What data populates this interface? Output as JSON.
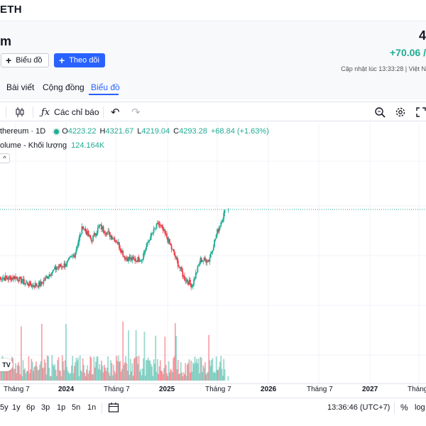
{
  "topbar": {
    "symbol": "ETH"
  },
  "header": {
    "name_partial": "m",
    "price_partial": "4",
    "change": "+70.06 /",
    "updated": "Cập nhật lúc   13:33:28 | Việt N",
    "buttons": {
      "chart": "Biểu đồ",
      "follow": "Theo dõi"
    },
    "tabs": [
      "Bài viết",
      "Cộng đồng",
      "Biểu đồ"
    ],
    "active_tab": "Biểu đồ"
  },
  "toolbar": {
    "indicators_label": "Các chỉ báo"
  },
  "legend": {
    "symbol": "thereum · 1D",
    "o_key": "O",
    "o_val": "4223.22",
    "h_key": "H",
    "h_val": "4321.67",
    "l_key": "L",
    "l_val": "4219.04",
    "c_key": "C",
    "c_val": "4293.28",
    "change": "+68.84 (+1.63%)",
    "volume_label": "olume - Khối lượng",
    "volume_val": "124.164K"
  },
  "xaxis": {
    "ticks": [
      "Tháng 7",
      "2024",
      "Tháng 7",
      "2025",
      "Tháng 7",
      "2026",
      "Tháng 7",
      "2027",
      "Tháng"
    ]
  },
  "bottombar": {
    "ranges": [
      "5y",
      "1y",
      "6p",
      "3p",
      "1p",
      "5n",
      "1n"
    ],
    "clock": "13:36:46 (UTC+7)",
    "percent": "%",
    "log": "log"
  },
  "chart_data": {
    "type": "candlestick",
    "interval": "1D",
    "x_ticks": [
      "Tháng 7",
      "2024",
      "Tháng 7",
      "2025",
      "Tháng 7",
      "2026",
      "Tháng 7",
      "2027"
    ],
    "last_ohlc": {
      "open": 4223.22,
      "high": 4321.67,
      "low": 4219.04,
      "close": 4293.28
    },
    "series": [
      {
        "name": "price",
        "points": [
          [
            "2023-05",
            1900
          ],
          [
            "2023-06",
            1850
          ],
          [
            "2023-07",
            1900
          ],
          [
            "2023-08",
            1700
          ],
          [
            "2023-09",
            1600
          ],
          [
            "2023-10",
            1650
          ],
          [
            "2023-11",
            2000
          ],
          [
            "2023-12",
            2250
          ],
          [
            "2024-01",
            2350
          ],
          [
            "2024-02",
            2700
          ],
          [
            "2024-03",
            3700
          ],
          [
            "2024-04",
            3200
          ],
          [
            "2024-05",
            3700
          ],
          [
            "2024-06",
            3450
          ],
          [
            "2024-07",
            3200
          ],
          [
            "2024-08",
            2600
          ],
          [
            "2024-09",
            2500
          ],
          [
            "2024-10",
            2550
          ],
          [
            "2024-11",
            3300
          ],
          [
            "2024-12",
            3800
          ],
          [
            "2025-01",
            3300
          ],
          [
            "2025-02",
            2600
          ],
          [
            "2025-03",
            1900
          ],
          [
            "2025-04",
            1600
          ],
          [
            "2025-05",
            2500
          ],
          [
            "2025-06",
            2500
          ],
          [
            "2025-07",
            3500
          ],
          [
            "2025-08",
            4293
          ]
        ]
      },
      {
        "name": "volume",
        "last": "124.164K"
      }
    ]
  }
}
